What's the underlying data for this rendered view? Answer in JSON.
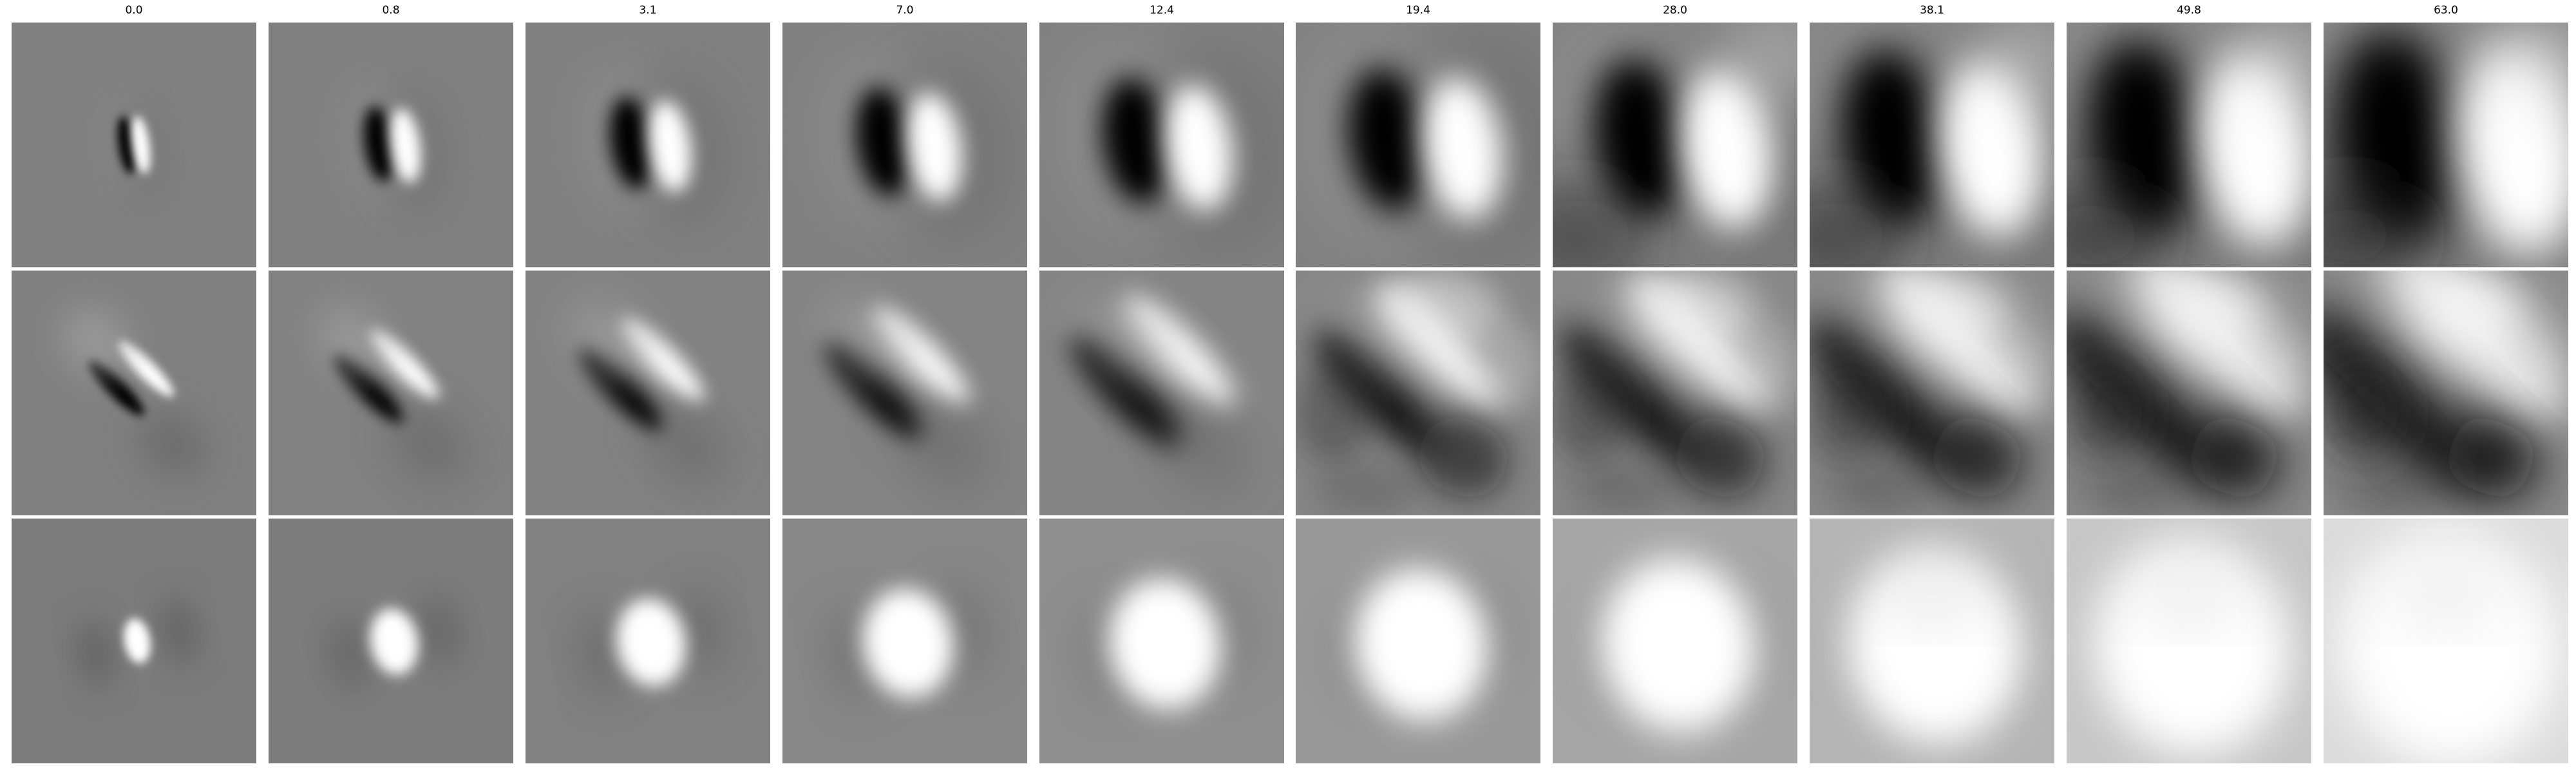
{
  "figure": {
    "column_titles": [
      "0.0",
      "0.8",
      "3.1",
      "7.0",
      "12.4",
      "19.4",
      "28.0",
      "38.1",
      "49.8",
      "63.0"
    ],
    "background_color": "#ffffff",
    "rows": [
      {
        "name": "row-1",
        "pattern": "vertical-dipole"
      },
      {
        "name": "row-2",
        "pattern": "diagonal-dipole"
      },
      {
        "name": "row-3",
        "pattern": "central-blob"
      }
    ]
  }
}
